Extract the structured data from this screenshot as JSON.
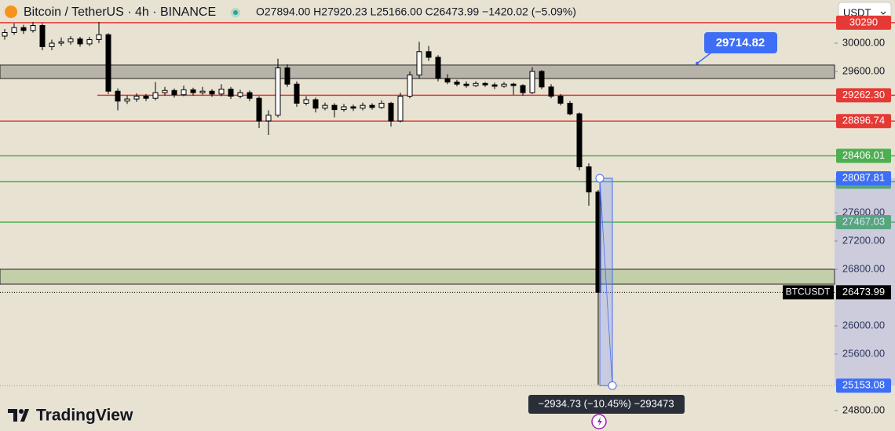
{
  "chart_data": {
    "type": "candlestick",
    "title": "Bitcoin / TetherUS · 4h · BINANCE",
    "ohlc_text": "O27894.00 H27920.23 L25166.00 C26473.99 −1420.02 (−5.09%)",
    "currency": "USDT",
    "brand": "TradingView",
    "ylim": [
      24511,
      30611
    ],
    "yticks": [
      {
        "value": 24800,
        "label": "24800.00"
      },
      {
        "value": 25600,
        "label": "25600.00"
      },
      {
        "value": 26000,
        "label": "26000.00"
      },
      {
        "value": 26800,
        "label": "26800.00"
      },
      {
        "value": 27200,
        "label": "27200.00"
      },
      {
        "value": 27600,
        "label": "27600.00"
      },
      {
        "value": 29600,
        "label": "29600.00"
      },
      {
        "value": 30000,
        "label": "30000.00"
      }
    ],
    "open": [
      30100,
      30150,
      30220,
      30180,
      30250,
      29950,
      30000,
      30020,
      30060,
      29990,
      30050,
      30120,
      29320,
      29180,
      29210,
      29250,
      29220,
      29300,
      29330,
      29270,
      29340,
      29300,
      29320,
      29280,
      29350,
      29250,
      29300,
      29220,
      28900,
      28980,
      29650,
      29420,
      29150,
      29200,
      29080,
      29120,
      29060,
      29100,
      29080,
      29120,
      29090,
      29150,
      28900,
      29250,
      29550,
      29880,
      29800,
      29500,
      29450,
      29420,
      29400,
      29430,
      29410,
      29390,
      29420,
      29400,
      29300,
      29600,
      29380,
      29250,
      29150,
      29000,
      28250,
      27894
    ],
    "high": [
      30200,
      30280,
      30260,
      30300,
      30280,
      30050,
      30080,
      30100,
      30090,
      30090,
      30300,
      30140,
      29360,
      29260,
      29290,
      29280,
      29450,
      29380,
      29360,
      29400,
      29370,
      29380,
      29350,
      29420,
      29380,
      29340,
      29330,
      29250,
      29050,
      29780,
      29700,
      29460,
      29250,
      29230,
      29160,
      29150,
      29140,
      29130,
      29160,
      29150,
      29190,
      29170,
      29300,
      29600,
      30020,
      29960,
      29830,
      29560,
      29480,
      29460,
      29460,
      29450,
      29440,
      29450,
      29440,
      29420,
      29660,
      29620,
      29420,
      29280,
      29180,
      29020,
      28300,
      27920.23
    ],
    "low": [
      30050,
      30120,
      30130,
      30150,
      29900,
      29900,
      29960,
      29980,
      29950,
      29960,
      30000,
      29280,
      29050,
      29140,
      29170,
      29180,
      29190,
      29260,
      29230,
      29250,
      29260,
      29270,
      29240,
      29250,
      29210,
      29220,
      29180,
      28800,
      28700,
      28950,
      29380,
      29100,
      29120,
      29020,
      29050,
      28950,
      29030,
      29040,
      29050,
      29060,
      29070,
      28820,
      28880,
      29220,
      29500,
      29750,
      29460,
      29420,
      29390,
      29370,
      29380,
      29380,
      29350,
      29370,
      29270,
      29260,
      29280,
      29350,
      29220,
      29120,
      28980,
      28200,
      27700,
      25166
    ],
    "close": [
      30150,
      30220,
      30180,
      30250,
      29950,
      30000,
      30020,
      30060,
      29990,
      30050,
      30120,
      29320,
      29180,
      29210,
      29250,
      29220,
      29300,
      29330,
      29270,
      29340,
      29300,
      29320,
      29280,
      29350,
      29250,
      29300,
      29220,
      28900,
      28980,
      29650,
      29420,
      29150,
      29200,
      29080,
      29120,
      29060,
      29100,
      29080,
      29120,
      29090,
      29150,
      28900,
      29250,
      29550,
      29880,
      29800,
      29500,
      29450,
      29420,
      29400,
      29430,
      29410,
      29390,
      29420,
      29400,
      29300,
      29600,
      29380,
      29250,
      29150,
      29000,
      28250,
      27894,
      26473.99
    ],
    "price_levels": [
      {
        "value": 30290,
        "color": "#e53935"
      },
      {
        "value": 29262.3,
        "label": "29262.30",
        "color": "#e53935"
      },
      {
        "value": 28896.74,
        "color": "#e53935"
      },
      {
        "value": 28406.01,
        "color": "#4caf50"
      },
      {
        "value": 28039.26,
        "color": "#4caf50"
      },
      {
        "value": 27467.03,
        "color": "#4caf50"
      }
    ],
    "zones": [
      {
        "from": 29500,
        "to": 29690,
        "color": "#b8b3a9"
      },
      {
        "from": 26589,
        "to": 26800,
        "color": "#c3cfa8"
      }
    ],
    "last_price": {
      "symbol": "BTCUSDT",
      "value": 26473.99
    },
    "callout": {
      "value": 29714.82
    },
    "measure": {
      "from": 28087.81,
      "to": 25153.08,
      "text": "−2934.73 (−10.45%) −293473"
    }
  }
}
